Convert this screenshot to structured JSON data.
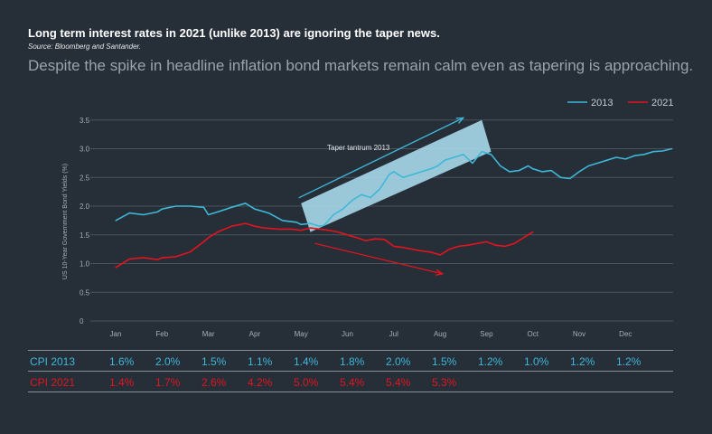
{
  "header": {
    "title": "Long term interest rates in 2021 (unlike 2013) are ignoring the taper news.",
    "source": "Source: Bloomberg and Santander.",
    "subtitle": "Despite the spike in headline inflation bond markets remain calm even as tapering is approaching."
  },
  "colors": {
    "background": "#262e38",
    "series_2013": "#3fb7d8",
    "series_2021": "#e3141f",
    "highlight": "#a9d9ea",
    "grid": "#4a525b"
  },
  "chart_data": {
    "type": "line",
    "ylabel": "US 10-Year Government Bond Yields (%)",
    "ylim": [
      0,
      3.5
    ],
    "yticks": [
      "0",
      "0.5",
      "1.0",
      "1.5",
      "2.0",
      "2.5",
      "3.0",
      "3.5"
    ],
    "xticks": [
      "Jan",
      "Feb",
      "Mar",
      "Apr",
      "May",
      "Jun",
      "Jul",
      "Aug",
      "Sep",
      "Oct",
      "Nov",
      "Dec"
    ],
    "legend": [
      "2013",
      "2021"
    ],
    "legend_position": "top-right",
    "grid": true,
    "annotation": "Taper tantrum 2013",
    "series": [
      {
        "name": "2013",
        "x": [
          0,
          0.3,
          0.6,
          0.9,
          1.0,
          1.3,
          1.6,
          1.9,
          2.0,
          2.2,
          2.5,
          2.8,
          3.0,
          3.3,
          3.6,
          3.9,
          4.0,
          4.2,
          4.4,
          4.5,
          4.7,
          4.9,
          5.1,
          5.3,
          5.5,
          5.7,
          5.9,
          6.0,
          6.2,
          6.4,
          6.6,
          6.8,
          6.95,
          7.1,
          7.3,
          7.5,
          7.7,
          7.9,
          8.1,
          8.3,
          8.5,
          8.7,
          8.9,
          9.0,
          9.2,
          9.4,
          9.6,
          9.8,
          10.0,
          10.2,
          10.4,
          10.6,
          10.8,
          11.0,
          11.2,
          11.4,
          11.6,
          11.8,
          12.0
        ],
        "y": [
          1.75,
          1.88,
          1.85,
          1.9,
          1.95,
          2.0,
          2.0,
          1.98,
          1.85,
          1.9,
          1.98,
          2.05,
          1.95,
          1.88,
          1.75,
          1.72,
          1.68,
          1.7,
          1.65,
          1.67,
          1.85,
          1.95,
          2.1,
          2.2,
          2.15,
          2.3,
          2.55,
          2.6,
          2.5,
          2.55,
          2.6,
          2.65,
          2.7,
          2.8,
          2.85,
          2.9,
          2.75,
          2.95,
          2.9,
          2.7,
          2.6,
          2.62,
          2.7,
          2.65,
          2.6,
          2.62,
          2.5,
          2.48,
          2.6,
          2.7,
          2.75,
          2.8,
          2.85,
          2.82,
          2.88,
          2.9,
          2.95,
          2.96,
          3.0
        ]
      },
      {
        "name": "2021",
        "x": [
          0,
          0.3,
          0.6,
          0.9,
          1.0,
          1.3,
          1.6,
          1.9,
          2.0,
          2.2,
          2.5,
          2.8,
          3.0,
          3.2,
          3.5,
          3.8,
          4.0,
          4.2,
          4.4,
          4.6,
          4.8,
          5.0,
          5.2,
          5.4,
          5.6,
          5.8,
          6.0,
          6.2,
          6.4,
          6.6,
          6.8,
          7.0,
          7.2,
          7.4,
          7.6,
          7.8,
          8.0,
          8.2,
          8.4,
          8.6,
          8.8,
          9.0
        ],
        "y": [
          0.93,
          1.08,
          1.1,
          1.07,
          1.1,
          1.12,
          1.2,
          1.38,
          1.45,
          1.55,
          1.65,
          1.7,
          1.65,
          1.62,
          1.6,
          1.6,
          1.58,
          1.62,
          1.6,
          1.58,
          1.55,
          1.5,
          1.45,
          1.4,
          1.43,
          1.42,
          1.3,
          1.28,
          1.25,
          1.22,
          1.2,
          1.15,
          1.25,
          1.3,
          1.32,
          1.35,
          1.38,
          1.32,
          1.3,
          1.35,
          1.45,
          1.55
        ]
      }
    ]
  },
  "cpi_table": {
    "rows": [
      {
        "label": "CPI 2013",
        "values": [
          "1.6%",
          "2.0%",
          "1.5%",
          "1.1%",
          "1.4%",
          "1.8%",
          "2.0%",
          "1.5%",
          "1.2%",
          "1.0%",
          "1.2%",
          "1.2%"
        ]
      },
      {
        "label": "CPI 2021",
        "values": [
          "1.4%",
          "1.7%",
          "2.6%",
          "4.2%",
          "5.0%",
          "5.4%",
          "5.4%",
          "5.3%"
        ]
      }
    ]
  }
}
